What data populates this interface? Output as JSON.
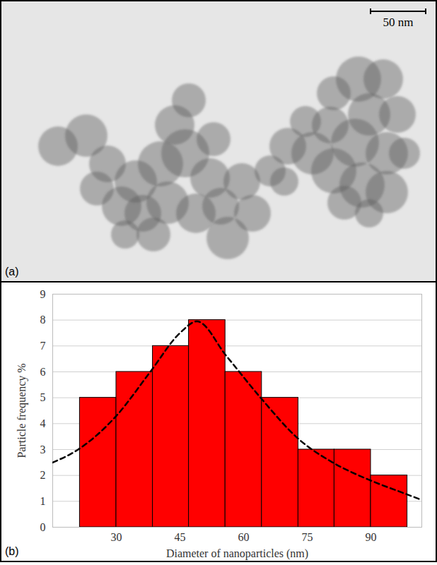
{
  "image": {
    "panel_label": "(a)",
    "scale_bar": "50 nm"
  },
  "chart_data": {
    "type": "histogram",
    "panel_label": "(b)",
    "x_label": "Diameter of nanoparticles (nm)",
    "y_label": "Particle frequency %",
    "bins": [
      21.4,
      30,
      38.6,
      47.1,
      55.7,
      64.3,
      72.9,
      81.4,
      90,
      98.6
    ],
    "values": [
      5,
      6,
      7,
      8,
      6,
      5,
      3,
      3,
      2
    ],
    "color": "#ff0000",
    "xlim": [
      15,
      102
    ],
    "xticks": [
      30,
      45,
      60,
      75,
      90
    ],
    "ylim": [
      0,
      9
    ],
    "yticks": [
      0,
      1,
      2,
      3,
      4,
      5,
      6,
      7,
      8,
      9
    ],
    "grid": true,
    "curve": {
      "type": "line",
      "line_style": "dashed",
      "color": "#000000",
      "x": [
        15,
        21,
        30,
        38,
        45,
        49,
        56,
        64,
        73,
        81,
        90,
        98,
        102
      ],
      "values": [
        2.5,
        3.0,
        4.3,
        6.0,
        7.5,
        7.95,
        6.6,
        5.0,
        3.4,
        2.5,
        1.8,
        1.3,
        1.05
      ]
    }
  }
}
